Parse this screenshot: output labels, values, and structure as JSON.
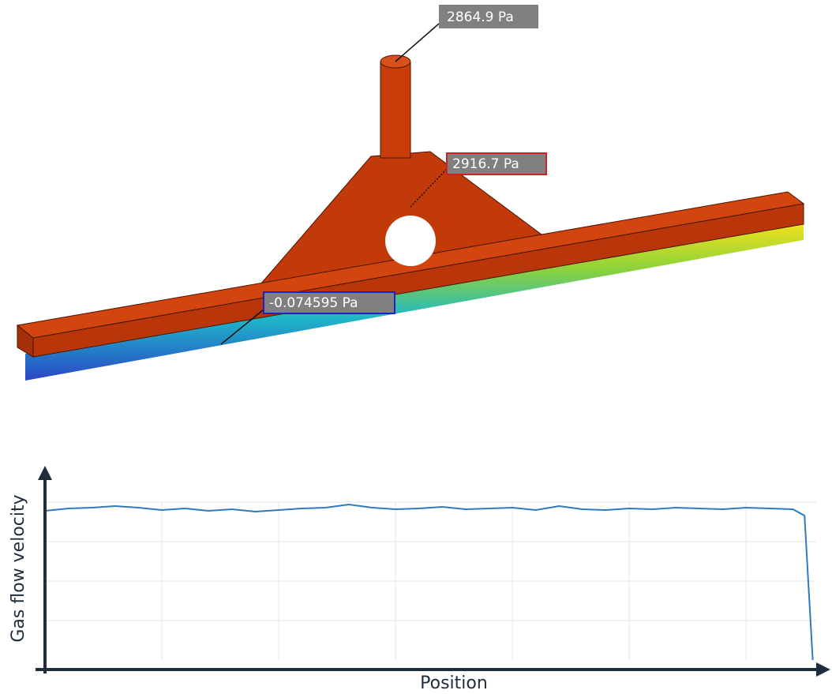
{
  "render": {
    "probes": [
      "2864.9 Pa",
      "2916.7 Pa",
      "-0.074595 Pa"
    ]
  },
  "chart_data": {
    "type": "line",
    "y_label": "Gas flow velocity",
    "x_label": "Position",
    "x": [
      0,
      0.2,
      0.4,
      0.6,
      0.8,
      1,
      1.2,
      1.4,
      1.6,
      1.8,
      2,
      2.2,
      2.4,
      2.6,
      2.8,
      3,
      3.2,
      3.4,
      3.6,
      3.8,
      4,
      4.2,
      4.4,
      4.6,
      4.8,
      5,
      5.2,
      5.4,
      5.6,
      5.8,
      6,
      6.2,
      6.4,
      6.5,
      6.57
    ],
    "values": [
      3.78,
      3.84,
      3.86,
      3.9,
      3.86,
      3.8,
      3.84,
      3.78,
      3.82,
      3.76,
      3.8,
      3.84,
      3.86,
      3.94,
      3.86,
      3.82,
      3.84,
      3.88,
      3.82,
      3.84,
      3.86,
      3.8,
      3.9,
      3.82,
      3.8,
      3.84,
      3.82,
      3.86,
      3.84,
      3.82,
      3.86,
      3.84,
      3.82,
      3.66,
      0
    ],
    "color": "#2f7bbf",
    "xlim": [
      0,
      6.6
    ],
    "ylim": [
      0,
      4
    ],
    "xgrid": [
      1,
      2,
      3,
      4,
      5,
      6
    ],
    "ygrid": [
      1,
      2,
      3,
      4
    ],
    "grid": true
  }
}
